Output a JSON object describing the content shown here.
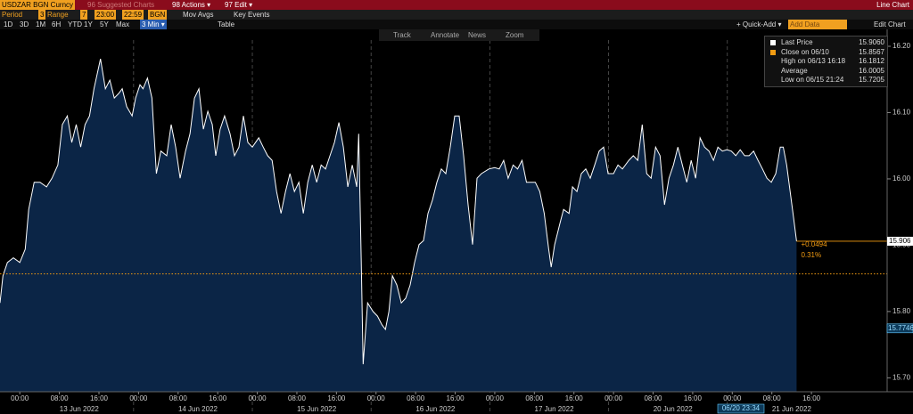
{
  "header": {
    "security": "USDZAR BGN Curncy",
    "suggested": "96 Suggested Charts",
    "actions": "98 Actions ▾",
    "edit": "97 Edit ▾",
    "chart_kind": "Line Chart"
  },
  "settings": {
    "period_label": "Period",
    "period": "3",
    "range_label": "Range",
    "range": "7",
    "start": "23:00",
    "end": "22:59",
    "source": "BGN",
    "mov_avgs": "Mov Avgs",
    "key_events": "Key Events"
  },
  "timebar": {
    "spans": [
      "1D",
      "3D",
      "1M",
      "6H",
      "YTD",
      "1Y",
      "5Y",
      "Max"
    ],
    "interval": "3 Min ▾",
    "table": "Table",
    "quick_add": "+ Quick-Add ▾",
    "add_data": "Add Data",
    "edit_chart": "Edit Chart"
  },
  "tools": [
    "Track",
    "Annotate",
    "News",
    "Zoom"
  ],
  "chart_data": {
    "type": "line",
    "color": "#ffffff",
    "area_color": "#0b2546",
    "xlim": [
      -4,
      175.3
    ],
    "ylim": [
      15.679,
      16.2255
    ],
    "yticks": [
      {
        "value": 15.7,
        "label": "15.70"
      },
      {
        "value": 15.8,
        "label": "15.80"
      },
      {
        "value": 15.9,
        "label": "15.90"
      },
      {
        "value": 16.0,
        "label": "16.00"
      },
      {
        "value": 16.1,
        "label": "16.10"
      },
      {
        "value": 16.2,
        "label": "16.20"
      }
    ],
    "xticks": [
      {
        "value": 0,
        "label": "00:00"
      },
      {
        "value": 8,
        "label": "08:00"
      },
      {
        "value": 16,
        "label": "16:00"
      },
      {
        "value": 24,
        "label": "00:00"
      },
      {
        "value": 32,
        "label": "08:00"
      },
      {
        "value": 40,
        "label": "16:00"
      },
      {
        "value": 48,
        "label": "00:00"
      },
      {
        "value": 56,
        "label": "08:00"
      },
      {
        "value": 64,
        "label": "16:00"
      },
      {
        "value": 72,
        "label": "00:00"
      },
      {
        "value": 80,
        "label": "08:00"
      },
      {
        "value": 88,
        "label": "16:00"
      },
      {
        "value": 96,
        "label": "00:00"
      },
      {
        "value": 104,
        "label": "08:00"
      },
      {
        "value": 112,
        "label": "16:00"
      },
      {
        "value": 120,
        "label": "00:00"
      },
      {
        "value": 128,
        "label": "08:00"
      },
      {
        "value": 136,
        "label": "16:00"
      },
      {
        "value": 144,
        "label": "00:00"
      },
      {
        "value": 152,
        "label": "08:00"
      },
      {
        "value": 160,
        "label": "16:00"
      }
    ],
    "day_labels": [
      {
        "value": 12,
        "label": "13 Jun 2022"
      },
      {
        "value": 36,
        "label": "14 Jun 2022"
      },
      {
        "value": 60,
        "label": "15 Jun 2022"
      },
      {
        "value": 84,
        "label": "16 Jun 2022"
      },
      {
        "value": 108,
        "label": "17 Jun 2022"
      },
      {
        "value": 132,
        "label": "20 Jun 2022"
      },
      {
        "value": 156,
        "label": "21 Jun 2022"
      }
    ],
    "day_separators": [
      23,
      47,
      71,
      95,
      119,
      143
    ],
    "reference_line": 15.8567,
    "reference_color": "#f39c12",
    "last_price": {
      "value": 15.906,
      "label": "15.906"
    },
    "cursor_price": {
      "value": 15.7746,
      "label": "15.7746"
    },
    "cursor_time": "06/20 23:34",
    "change": "+0.0494",
    "change_pct": "0.31%",
    "legend": [
      {
        "name": "Last Price",
        "value": "15.9060"
      },
      {
        "name": "Close on 06/10",
        "value": "15.8567"
      },
      {
        "name": "High on 06/13 16:18",
        "value": "16.1812"
      },
      {
        "name": "Average",
        "value": "16.0005"
      },
      {
        "name": "Low on 06/15 21:24",
        "value": "15.7205"
      }
    ],
    "x": [
      -4.0,
      -3.4,
      -2.5,
      -1.3,
      0,
      1.1,
      1.8,
      2.9,
      4.1,
      5.4,
      6.5,
      7.7,
      8.6,
      9.6,
      10.5,
      11.4,
      12.3,
      13.2,
      14.1,
      15.0,
      16.3,
      17.3,
      18.2,
      19.1,
      20.0,
      20.7,
      21.6,
      22.7,
      23.4,
      24.3,
      24.9,
      25.8,
      26.7,
      27.6,
      28.5,
      29.7,
      30.6,
      31.5,
      32.4,
      33.5,
      34.4,
      35.3,
      36.2,
      37.1,
      38.0,
      38.9,
      39.6,
      40.5,
      41.4,
      42.5,
      43.4,
      44.3,
      45.2,
      46.1,
      47.0,
      48.3,
      49.2,
      50.1,
      51.0,
      51.9,
      52.8,
      53.7,
      54.6,
      55.5,
      56.4,
      57.3,
      58.2,
      59.1,
      60.0,
      60.9,
      61.8,
      62.7,
      63.6,
      64.5,
      65.4,
      66.3,
      67.2,
      68.1,
      68.5,
      69.0,
      69.4,
      70.3,
      71.4,
      72.3,
      73.2,
      73.9,
      74.6,
      75.3,
      76.2,
      77.1,
      78.0,
      78.9,
      79.8,
      80.7,
      81.6,
      82.5,
      83.4,
      84.3,
      85.2,
      86.1,
      87.0,
      87.9,
      88.8,
      89.7,
      90.6,
      91.5,
      92.4,
      93.3,
      94.8,
      96.0,
      96.9,
      97.8,
      98.7,
      99.7,
      100.6,
      101.5,
      102.4,
      103.3,
      104.2,
      105.1,
      106.0,
      106.9,
      107.4,
      108.1,
      109.2,
      109.9,
      111.0,
      111.7,
      112.6,
      113.5,
      114.4,
      115.3,
      116.2,
      117.1,
      118.0,
      118.9,
      120.0,
      120.9,
      121.8,
      123.1,
      124.0,
      124.9,
      125.8,
      126.7,
      127.6,
      128.5,
      129.4,
      130.3,
      131.2,
      132.1,
      133.0,
      133.9,
      134.8,
      135.7,
      136.6,
      137.5,
      138.4,
      139.3,
      140.2,
      141.1,
      142.0,
      142.9,
      143.8,
      144.7,
      145.6,
      146.5,
      147.4,
      148.3,
      149.2,
      150.1,
      151.0,
      151.9,
      152.8,
      153.7,
      154.3,
      155.0,
      155.7,
      156.4,
      157.0
    ],
    "values": [
      15.813,
      15.854,
      15.874,
      15.881,
      15.874,
      15.894,
      15.954,
      15.995,
      15.995,
      15.988,
      16.001,
      16.021,
      16.082,
      16.095,
      16.055,
      16.082,
      16.048,
      16.082,
      16.095,
      16.136,
      16.181,
      16.136,
      16.149,
      16.122,
      16.129,
      16.136,
      16.109,
      16.095,
      16.122,
      16.142,
      16.136,
      16.152,
      16.122,
      16.008,
      16.042,
      16.035,
      16.082,
      16.048,
      16.001,
      16.042,
      16.068,
      16.122,
      16.136,
      16.075,
      16.102,
      16.082,
      16.035,
      16.075,
      16.095,
      16.068,
      16.035,
      16.048,
      16.095,
      16.055,
      16.048,
      16.062,
      16.048,
      16.035,
      16.028,
      15.981,
      15.948,
      15.981,
      16.008,
      15.981,
      15.995,
      15.948,
      15.995,
      16.021,
      15.995,
      16.021,
      16.015,
      16.035,
      16.055,
      16.085,
      16.048,
      15.988,
      16.021,
      15.988,
      16.068,
      15.881,
      15.7205,
      15.813,
      15.8,
      15.793,
      15.78,
      15.773,
      15.8,
      15.854,
      15.84,
      15.813,
      15.82,
      15.84,
      15.874,
      15.901,
      15.907,
      15.948,
      15.968,
      15.995,
      16.015,
      16.008,
      16.048,
      16.095,
      16.095,
      16.035,
      15.961,
      15.901,
      16.001,
      16.008,
      16.015,
      16.017,
      16.015,
      16.028,
      16.001,
      16.021,
      16.015,
      16.028,
      15.995,
      15.995,
      15.995,
      15.981,
      15.948,
      15.894,
      15.867,
      15.901,
      15.934,
      15.954,
      15.948,
      15.988,
      15.981,
      16.008,
      16.015,
      16.001,
      16.021,
      16.042,
      16.048,
      16.008,
      16.008,
      16.021,
      16.015,
      16.028,
      16.035,
      16.028,
      16.082,
      16.008,
      16.001,
      16.048,
      16.035,
      15.961,
      16.001,
      16.021,
      16.048,
      16.021,
      15.995,
      16.028,
      16.001,
      16.062,
      16.048,
      16.042,
      16.028,
      16.048,
      16.042,
      16.044,
      16.042,
      16.035,
      16.044,
      16.035,
      16.035,
      16.042,
      16.028,
      16.015,
      16.001,
      15.995,
      16.008,
      16.048,
      16.048,
      16.021,
      15.981,
      15.941,
      15.906
    ]
  }
}
